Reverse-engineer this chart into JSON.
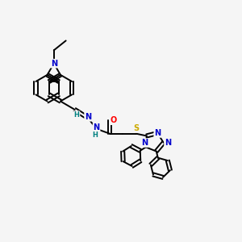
{
  "background_color": "#f5f5f5",
  "atom_colors": {
    "C": "#000000",
    "N": "#0000cc",
    "O": "#ff0000",
    "S": "#ccaa00",
    "H_teal": "#008080"
  },
  "lw": 1.4,
  "fs": 7.0,
  "xlim": [
    0,
    10
  ],
  "ylim": [
    0,
    10
  ]
}
